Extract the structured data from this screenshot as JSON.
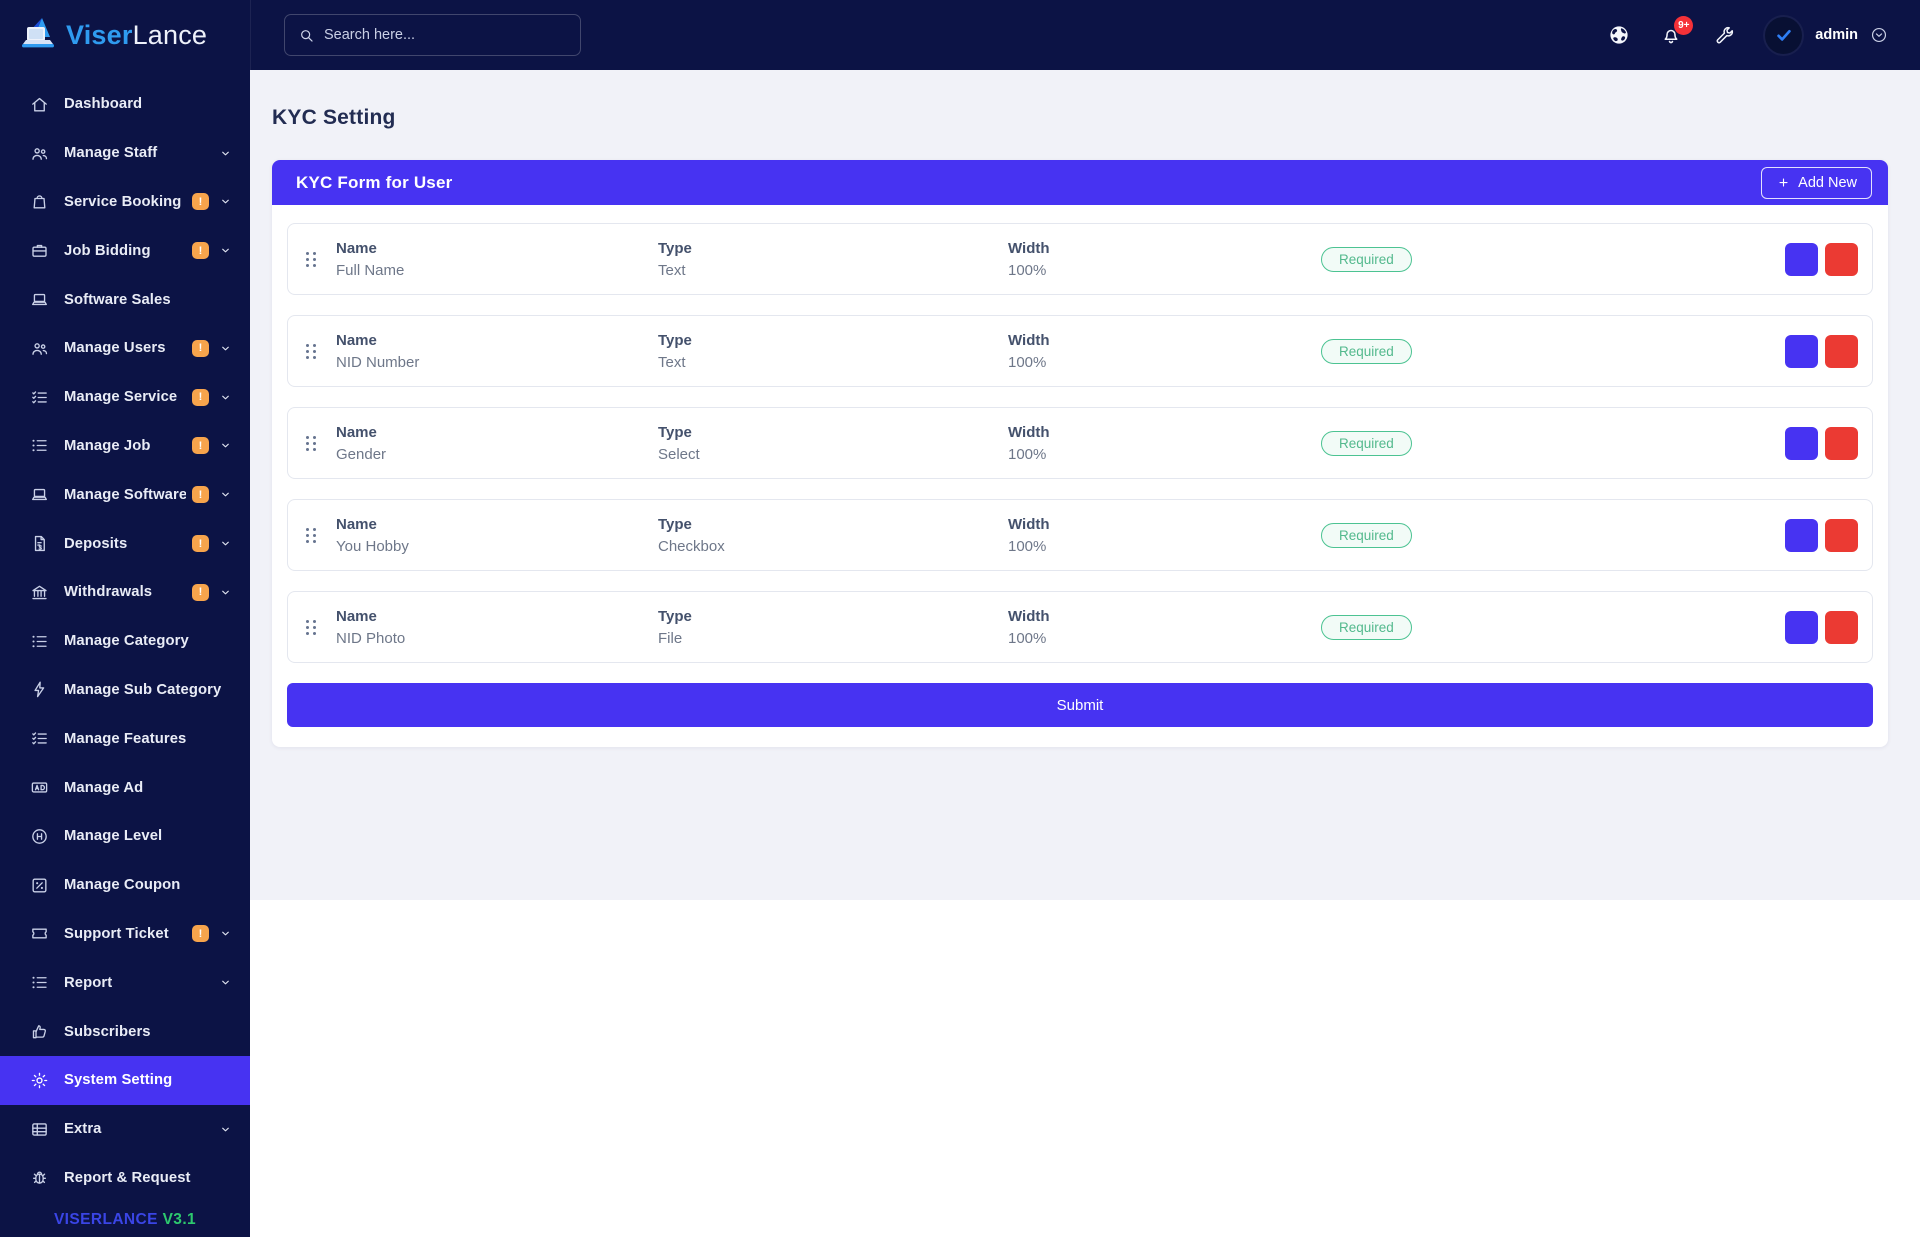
{
  "colors": {
    "navy": "#0c1345",
    "accent": "#4733f2",
    "content_bg": "#f1f2f8",
    "danger": "#eb3a33",
    "success": "#4cc392",
    "warning": "#f7a44c",
    "logo_blue": "#2f9bf0",
    "footer_blue": "#3a45e6",
    "footer_green": "#2dc96e",
    "notification_red": "#f53138"
  },
  "brand": {
    "logo_primary": "Viser",
    "logo_secondary": "Lance"
  },
  "topbar": {
    "search_placeholder": "Search here...",
    "notification_badge": "9+",
    "username": "admin"
  },
  "sidebar": {
    "items": [
      {
        "label": "Dashboard",
        "icon": "home"
      },
      {
        "label": "Manage Staff",
        "icon": "users-group",
        "chevron": true
      },
      {
        "label": "Service Booking",
        "icon": "shopping-bag",
        "badge": "!",
        "chevron": true
      },
      {
        "label": "Job Bidding",
        "icon": "briefcase",
        "badge": "!",
        "chevron": true
      },
      {
        "label": "Software Sales",
        "icon": "laptop"
      },
      {
        "label": "Manage Users",
        "icon": "users-group",
        "badge": "!",
        "chevron": true
      },
      {
        "label": "Manage Service",
        "icon": "list-check",
        "badge": "!",
        "chevron": true
      },
      {
        "label": "Manage Job",
        "icon": "list",
        "badge": "!",
        "chevron": true
      },
      {
        "label": "Manage Software",
        "icon": "laptop",
        "badge": "!",
        "chevron": true
      },
      {
        "label": "Deposits",
        "icon": "file-invoice",
        "badge": "!",
        "chevron": true
      },
      {
        "label": "Withdrawals",
        "icon": "bank",
        "badge": "!",
        "chevron": true
      },
      {
        "label": "Manage Category",
        "icon": "list"
      },
      {
        "label": "Manage Sub Category",
        "icon": "bolt"
      },
      {
        "label": "Manage Features",
        "icon": "list-check"
      },
      {
        "label": "Manage Ad",
        "icon": "ad"
      },
      {
        "label": "Manage Level",
        "icon": "level"
      },
      {
        "label": "Manage Coupon",
        "icon": "percent"
      },
      {
        "label": "Support Ticket",
        "icon": "ticket",
        "badge": "!",
        "chevron": true
      },
      {
        "label": "Report",
        "icon": "list",
        "chevron": true
      },
      {
        "label": "Subscribers",
        "icon": "thumbs-up"
      },
      {
        "label": "System Setting",
        "icon": "gear",
        "active": true
      },
      {
        "label": "Extra",
        "icon": "table",
        "chevron": true
      },
      {
        "label": "Report & Request",
        "icon": "bug"
      }
    ],
    "footer": {
      "brand": "VISERLANCE",
      "version": "V3.1"
    }
  },
  "page": {
    "title": "KYC Setting"
  },
  "kyc_card": {
    "header": "KYC Form for User",
    "add_new": "Add New",
    "submit": "Submit",
    "field_labels": {
      "name": "Name",
      "type": "Type",
      "width": "Width"
    },
    "rows": [
      {
        "name": "Full Name",
        "type": "Text",
        "width": "100%",
        "status": "Required"
      },
      {
        "name": "NID Number",
        "type": "Text",
        "width": "100%",
        "status": "Required"
      },
      {
        "name": "Gender",
        "type": "Select",
        "width": "100%",
        "status": "Required"
      },
      {
        "name": "You Hobby",
        "type": "Checkbox",
        "width": "100%",
        "status": "Required"
      },
      {
        "name": "NID Photo",
        "type": "File",
        "width": "100%",
        "status": "Required"
      }
    ]
  }
}
